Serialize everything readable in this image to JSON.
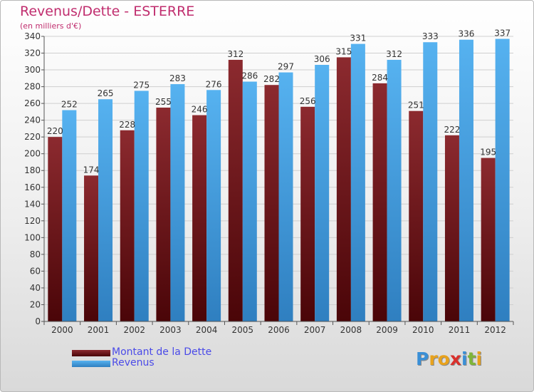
{
  "title": "Revenus/Dette - ESTERRE",
  "subtitle": "(en milliers d'€)",
  "logo": {
    "text": "Proxiti",
    "colors": [
      "#3a8fd6",
      "#e8a21c",
      "#e8a21c",
      "#d9302c",
      "#3a8fd6",
      "#7fb539",
      "#e8a21c"
    ]
  },
  "colors": {
    "dette": "#7a1f23",
    "revenus": "#4aa8ea"
  },
  "chart_data": {
    "type": "bar",
    "title": "Revenus/Dette - ESTERRE",
    "subtitle": "(en milliers d'€)",
    "categories": [
      "2000",
      "2001",
      "2002",
      "2003",
      "2004",
      "2005",
      "2006",
      "2007",
      "2008",
      "2009",
      "2010",
      "2011",
      "2012"
    ],
    "series": [
      {
        "name": "Montant de la Dette",
        "color": "#7a1f23",
        "values": [
          220,
          174,
          228,
          255,
          246,
          312,
          282,
          256,
          315,
          284,
          251,
          222,
          195
        ]
      },
      {
        "name": "Revenus",
        "color": "#4aa8ea",
        "values": [
          252,
          265,
          275,
          283,
          276,
          286,
          297,
          306,
          331,
          312,
          333,
          336,
          337
        ]
      }
    ],
    "ylim": [
      0,
      340
    ],
    "ytick_step": 20,
    "grid": true,
    "legend": "bottom-left"
  }
}
